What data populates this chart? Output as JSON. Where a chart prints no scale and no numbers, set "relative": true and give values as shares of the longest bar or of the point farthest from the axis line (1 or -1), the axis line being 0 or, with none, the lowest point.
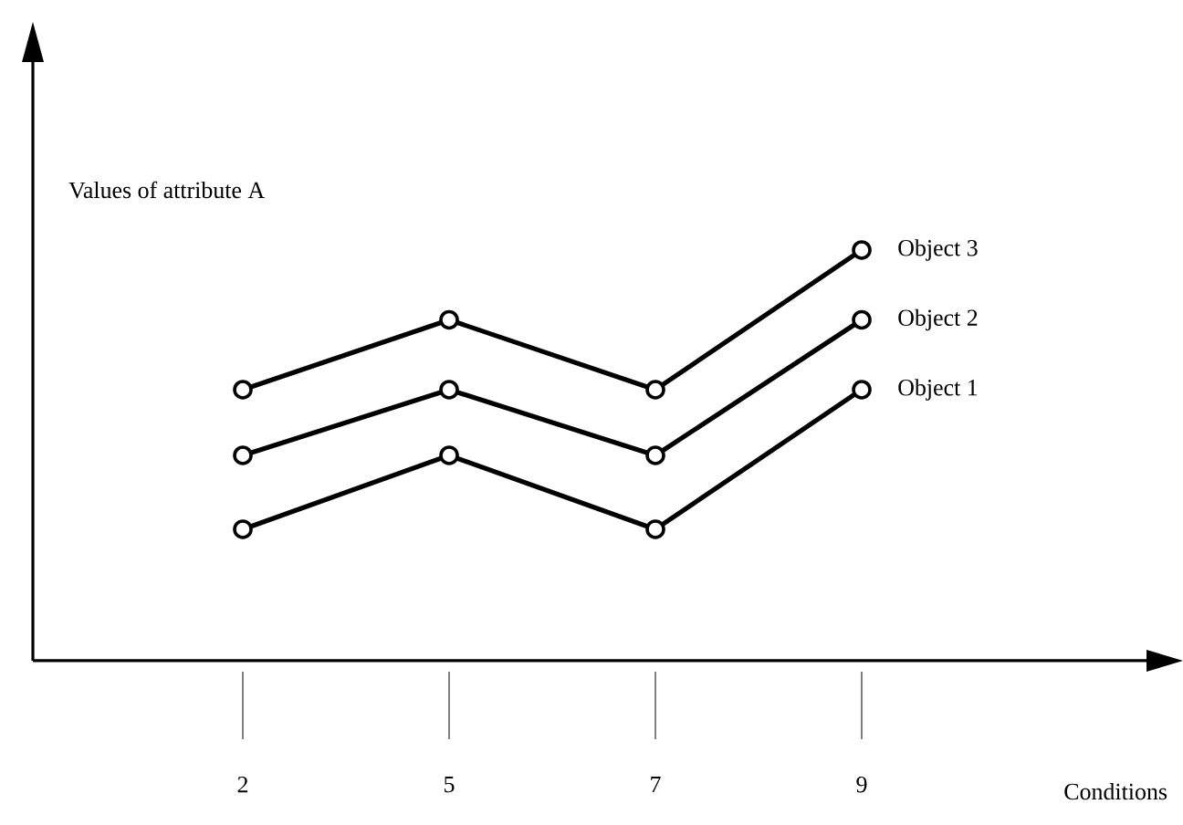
{
  "chart_data": {
    "type": "line",
    "relative": true,
    "xlabel": "Conditions",
    "ylabel": "Values of attribute A",
    "categories": [
      "2",
      "5",
      "7",
      "9"
    ],
    "series": [
      {
        "name": "Object 1",
        "color": "#000000",
        "values": [
          0.32,
          0.5,
          0.32,
          0.66
        ]
      },
      {
        "name": "Object 2",
        "color": "#000000",
        "values": [
          0.5,
          0.66,
          0.5,
          0.83
        ]
      },
      {
        "name": "Object 3",
        "color": "#000000",
        "values": [
          0.66,
          0.83,
          0.66,
          1.0
        ]
      }
    ],
    "marker": "circle",
    "line_style": "solid"
  }
}
